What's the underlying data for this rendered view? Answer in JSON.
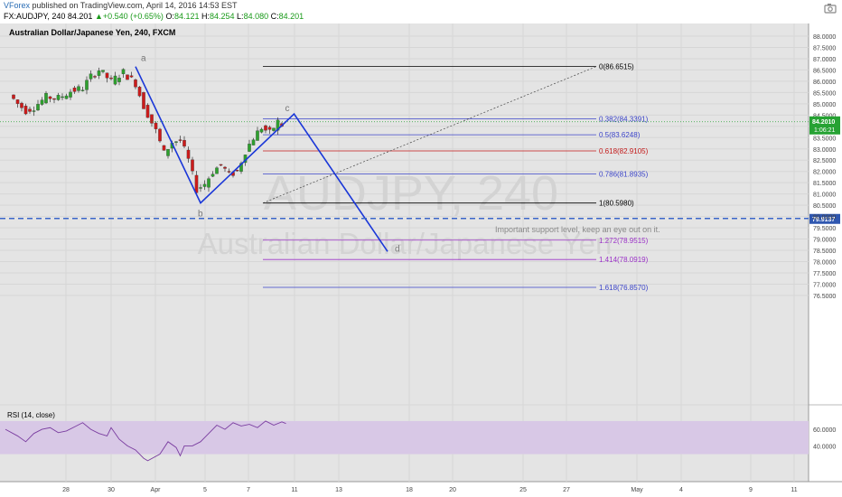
{
  "header": {
    "brand": "VForex",
    "published": " published on TradingView.com, April 14, 2016 14:53 EST",
    "symbol": "FX:AUDJPY, 240",
    "last": "84.201",
    "change": "+0.540 (+0.65%)",
    "o_label": "O:",
    "o": "84.121",
    "h_label": "H:",
    "h": "84.254",
    "l_label": "L:",
    "l": "84.080",
    "c_label": "C:",
    "c": "84.201"
  },
  "chart_title": "Australian Dollar/Japanese Yen, 240, FXCM",
  "watermark": {
    "line1": "AUDJPY, 240",
    "line2": "Australian Dollar/Japanese Yen"
  },
  "colors": {
    "pane_bg": "#e4e4e4",
    "up": "#2ea02e",
    "down": "#cc1b1b",
    "pattern": "#1a37d8",
    "support": "#3a66c9",
    "rsi_band": "#d8c8e6",
    "rsi_line": "#7a3da0",
    "price_badge": "#26a233",
    "support_badge": "#2f57b0"
  },
  "chart_data": {
    "type": "candlestick",
    "price_axis": {
      "ticks": [
        "88.0000",
        "87.5000",
        "87.0000",
        "86.5000",
        "86.0000",
        "85.5000",
        "85.0000",
        "84.5000",
        "84.0000",
        "83.5000",
        "83.0000",
        "82.5000",
        "82.0000",
        "81.5000",
        "81.0000",
        "80.5000",
        "80.0000",
        "79.5000",
        "79.0000",
        "78.5000",
        "78.0000",
        "77.5000",
        "77.0000",
        "76.5000"
      ],
      "range": [
        76.4,
        88.1
      ]
    },
    "time_axis": {
      "labels": [
        "28",
        "30",
        "Apr",
        "5",
        "7",
        "11",
        "13",
        "18",
        "20",
        "25",
        "27",
        "May",
        "4",
        "9",
        "11"
      ]
    },
    "last_price": {
      "value": 84.201,
      "label": "84.2010",
      "countdown": "1:06:21"
    },
    "candles_path": [
      [
        2,
        85.4
      ],
      [
        4,
        85.0
      ],
      [
        6,
        84.7
      ],
      [
        8,
        84.85
      ],
      [
        11,
        85.3
      ],
      [
        14,
        85.25
      ],
      [
        17,
        85.55
      ],
      [
        20,
        85.7
      ],
      [
        22,
        86.2
      ],
      [
        24,
        86.5
      ],
      [
        27,
        86.0
      ],
      [
        30,
        86.4
      ],
      [
        33,
        85.9
      ],
      [
        35,
        84.9
      ],
      [
        38,
        83.8
      ],
      [
        40,
        82.8
      ],
      [
        42,
        83.3
      ],
      [
        44,
        83.4
      ],
      [
        46,
        82.5
      ],
      [
        48,
        81.2
      ],
      [
        50,
        81.45
      ],
      [
        52,
        82.0
      ],
      [
        54,
        82.3
      ],
      [
        56,
        81.85
      ],
      [
        58,
        82.0
      ],
      [
        60,
        82.9
      ],
      [
        62,
        83.5
      ],
      [
        64,
        83.95
      ],
      [
        66,
        83.7
      ],
      [
        68,
        84.2
      ],
      [
        69,
        84.05
      ]
    ],
    "rsi": {
      "label": "RSI (14, close)",
      "ticks": [
        "60.0000",
        "40.0000"
      ],
      "band": [
        30,
        70
      ],
      "path": [
        [
          0,
          60
        ],
        [
          3,
          52
        ],
        [
          5,
          45
        ],
        [
          7,
          55
        ],
        [
          9,
          60
        ],
        [
          11,
          62
        ],
        [
          13,
          56
        ],
        [
          15,
          58
        ],
        [
          17,
          63
        ],
        [
          19,
          68
        ],
        [
          21,
          60
        ],
        [
          23,
          55
        ],
        [
          25,
          52
        ],
        [
          26,
          62
        ],
        [
          28,
          48
        ],
        [
          30,
          40
        ],
        [
          32,
          35
        ],
        [
          34,
          25
        ],
        [
          35,
          22
        ],
        [
          38,
          30
        ],
        [
          40,
          45
        ],
        [
          42,
          38
        ],
        [
          43,
          28
        ],
        [
          44,
          40
        ],
        [
          46,
          40
        ],
        [
          48,
          45
        ],
        [
          50,
          55
        ],
        [
          52,
          65
        ],
        [
          54,
          60
        ],
        [
          56,
          68
        ],
        [
          58,
          64
        ],
        [
          60,
          66
        ],
        [
          62,
          62
        ],
        [
          64,
          70
        ],
        [
          66,
          65
        ],
        [
          68,
          69
        ],
        [
          69,
          67
        ]
      ]
    },
    "fib_levels": [
      {
        "ratio": "0",
        "value": 86.6515,
        "text": "0(86.6515)",
        "color": "#000000"
      },
      {
        "ratio": "0.382",
        "value": 84.3391,
        "text": "0.382(84.3391)",
        "color": "#3b44c9"
      },
      {
        "ratio": "0.5",
        "value": 83.6248,
        "text": "0.5(83.6248)",
        "color": "#3b44c9"
      },
      {
        "ratio": "0.618",
        "value": 82.9105,
        "text": "0.618(82.9105)",
        "color": "#c41a1a"
      },
      {
        "ratio": "0.786",
        "value": 81.8935,
        "text": "0.786(81.8935)",
        "color": "#3b44c9"
      },
      {
        "ratio": "1",
        "value": 80.598,
        "text": "1(80.5980)",
        "color": "#000000"
      },
      {
        "ratio": "1.272",
        "value": 78.9515,
        "text": "1.272(78.9515)",
        "color": "#9b32c8"
      },
      {
        "ratio": "1.414",
        "value": 78.0919,
        "text": "1.414(78.0919)",
        "color": "#9b32c8"
      },
      {
        "ratio": "1.618",
        "value": 76.857,
        "text": "1.618(76.8570)",
        "color": "#3b44c9"
      }
    ],
    "pattern_points": [
      {
        "label": "a",
        "bar": 32,
        "value": 86.65
      },
      {
        "label": "b",
        "bar": 48,
        "value": 80.6
      },
      {
        "label": "c",
        "bar": 71,
        "value": 84.55
      },
      {
        "label": "d",
        "bar": 94,
        "value": 78.45
      }
    ],
    "support": {
      "value": 79.9137,
      "label": "79.9137",
      "note": "Important support level, keep an eye out on it."
    }
  }
}
